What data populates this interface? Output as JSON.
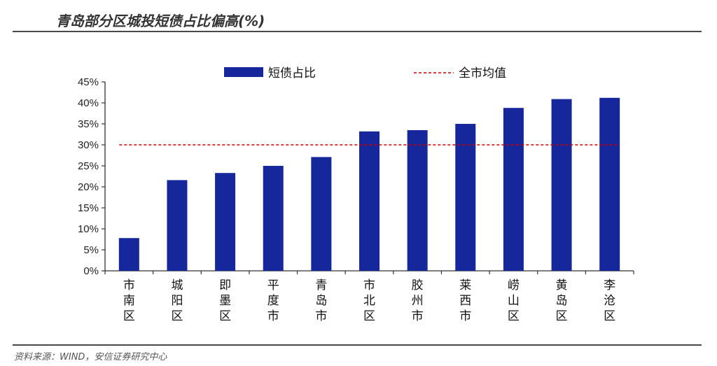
{
  "header": {
    "title": "青岛部分区城投短债占比偏高(%)"
  },
  "footer": {
    "source": "资料来源：WIND，安信证券研究中心"
  },
  "chart_data": {
    "type": "bar",
    "categories": [
      "市南区",
      "城阳区",
      "即墨区",
      "平度市",
      "青岛市",
      "市北区",
      "胶州市",
      "莱西市",
      "崂山区",
      "黄岛区",
      "李沧区"
    ],
    "series": [
      {
        "name": "短债占比",
        "values": [
          7.8,
          21.6,
          23.3,
          25.0,
          27.1,
          33.2,
          33.5,
          35.0,
          38.8,
          40.9,
          41.2
        ],
        "color": "#15279a"
      }
    ],
    "reference_line": {
      "name": "全市均值",
      "value": 30.0,
      "color": "#cc0000",
      "style": "dashed"
    },
    "ylim": [
      0,
      45
    ],
    "yticks": [
      "0%",
      "5%",
      "10%",
      "15%",
      "20%",
      "25%",
      "30%",
      "35%",
      "40%",
      "45%"
    ],
    "legend_position": "top",
    "grid": false
  }
}
